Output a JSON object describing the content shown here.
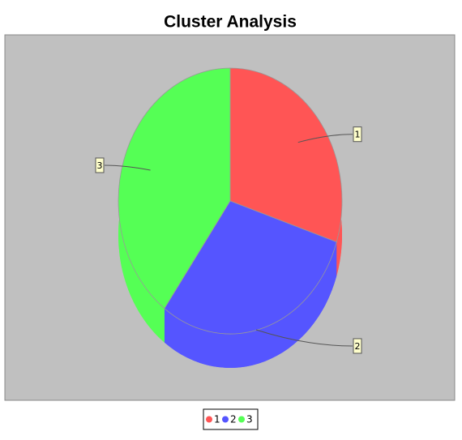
{
  "chart_data": {
    "type": "pie3d",
    "title": "Cluster Analysis",
    "categories": [
      "1",
      "2",
      "3"
    ],
    "values": [
      30,
      30,
      40
    ],
    "colors": [
      "#ff5555",
      "#5555ff",
      "#55ff55"
    ]
  }
}
